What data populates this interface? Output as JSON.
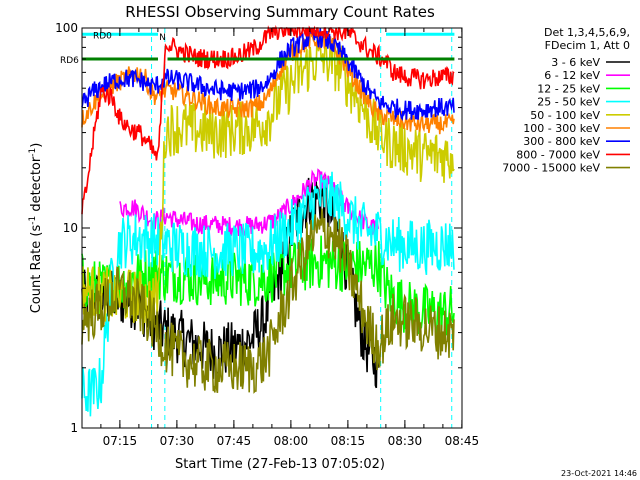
{
  "chart_data": {
    "type": "line",
    "title": "RHESSI Observing Summary Count Rates",
    "xlabel": "Start Time (27-Feb-13 07:05:02)",
    "ylabel_main": "Count Rate (s",
    "ylabel_sup": "-1",
    "ylabel_rest": " detector",
    "ylabel_sup2": "-1",
    "ylabel_close": ")",
    "yscale": "log",
    "ylim": [
      1,
      100
    ],
    "xlim_minutes": [
      0,
      100
    ],
    "y_ticks": [
      {
        "value": 1,
        "label": "1"
      },
      {
        "value": 10,
        "label": "10"
      },
      {
        "value": 100,
        "label": "100"
      }
    ],
    "x_ticks": [
      {
        "minute": 9.97,
        "label": "07:15"
      },
      {
        "minute": 24.97,
        "label": "07:30"
      },
      {
        "minute": 39.97,
        "label": "07:45"
      },
      {
        "minute": 54.97,
        "label": "08:00"
      },
      {
        "minute": 69.97,
        "label": "08:15"
      },
      {
        "minute": 84.97,
        "label": "08:30"
      },
      {
        "minute": 99.97,
        "label": "08:45"
      }
    ],
    "legend_header": [
      "Det 1,3,4,5,6,9,",
      "FDecim 1, Att 0"
    ],
    "legend_position": "right",
    "footer_date": "23-Oct-2021 14:46",
    "flags": [
      {
        "name": "RD0",
        "label": "RD0",
        "color": "#00ffff",
        "level": 93,
        "segments": [
          [
            0,
            20
          ],
          [
            80,
            98
          ]
        ]
      },
      {
        "name": "RD6",
        "label": "RD6",
        "color": "#008000",
        "level": 70,
        "segments": [
          [
            0,
            20
          ],
          [
            22.5,
            98
          ]
        ]
      }
    ],
    "flag_marker": {
      "label": "N",
      "minute": 19.5,
      "color": "#00ffff"
    },
    "vlines": [
      {
        "minute": 18.3,
        "color": "#00ffff"
      },
      {
        "minute": 21.8,
        "color": "#00ffff"
      },
      {
        "minute": 78.6,
        "color": "#00ffff"
      },
      {
        "minute": 97.3,
        "color": "#00ffff"
      }
    ],
    "series": [
      {
        "name": "3 - 6 keV",
        "color": "#000000",
        "x": [
          0,
          8,
          10,
          13,
          15,
          18,
          20,
          23,
          25,
          30,
          35,
          40,
          45,
          48,
          50,
          52,
          54,
          56,
          58,
          60,
          62,
          64,
          66,
          68,
          70,
          72,
          74,
          76,
          78
        ],
        "y": [
          4.5,
          4.5,
          4.4,
          4.3,
          4.2,
          3.5,
          3.2,
          3.0,
          2.9,
          2.6,
          2.4,
          2.5,
          2.8,
          3.5,
          4.5,
          6.0,
          8.0,
          10.5,
          12.5,
          14.0,
          14.5,
          13.5,
          11.0,
          8.5,
          6.0,
          4.0,
          2.8,
          2.3,
          2.1
        ]
      },
      {
        "name": "6 - 12 keV",
        "color": "#ff00ff",
        "x": [
          10,
          12,
          14,
          17,
          19,
          22,
          25,
          30,
          35,
          40,
          45,
          48,
          50,
          52,
          55,
          58,
          60,
          62,
          64,
          66,
          68,
          70,
          72,
          74,
          76,
          78
        ],
        "y": [
          12.5,
          12.8,
          12.6,
          11.5,
          10.8,
          11.5,
          11.0,
          10.5,
          10.4,
          10.2,
          10.3,
          10.5,
          10.8,
          11.5,
          13.0,
          15.0,
          16.8,
          17.5,
          17.0,
          15.5,
          14.0,
          12.5,
          11.5,
          10.8,
          10.2,
          9.8
        ]
      },
      {
        "name": "12 - 25 keV",
        "color": "#00ff00",
        "x": [
          0,
          2,
          5,
          10,
          15,
          18,
          20,
          22,
          25,
          30,
          35,
          40,
          45,
          48,
          50,
          52,
          55,
          58,
          60,
          62,
          64,
          66,
          68,
          70,
          72,
          74,
          76,
          78,
          80,
          82,
          84,
          86,
          88,
          90,
          92,
          94,
          96,
          98
        ],
        "y": [
          5.5,
          5.2,
          5.0,
          5.2,
          5.8,
          6.0,
          6.0,
          5.8,
          5.8,
          5.6,
          5.5,
          5.6,
          5.5,
          5.6,
          5.8,
          6.0,
          6.3,
          6.5,
          6.6,
          6.8,
          6.7,
          6.6,
          6.6,
          6.5,
          6.5,
          6.4,
          6.5,
          6.6,
          5.0,
          4.5,
          4.2,
          4.0,
          3.9,
          3.8,
          3.8,
          3.7,
          3.8,
          3.8
        ]
      },
      {
        "name": "25 - 50 keV",
        "color": "#00ffff",
        "x": [
          0,
          3,
          5,
          8,
          10,
          13,
          15,
          18,
          20,
          22,
          25,
          30,
          35,
          40,
          45,
          48,
          50,
          52,
          55,
          58,
          60,
          62,
          64,
          66,
          68,
          70,
          72,
          74,
          76,
          78,
          80,
          82,
          85,
          88,
          90,
          92,
          95,
          98
        ],
        "y": [
          1.5,
          1.5,
          1.7,
          6.0,
          8.5,
          8.8,
          9.0,
          8.8,
          8.6,
          8.4,
          8.0,
          7.8,
          7.6,
          7.8,
          7.6,
          7.8,
          8.2,
          9.0,
          10.0,
          11.5,
          13.0,
          14.0,
          14.5,
          13.8,
          12.8,
          11.5,
          10.5,
          9.8,
          9.5,
          9.3,
          8.8,
          8.4,
          8.2,
          8.0,
          8.0,
          8.1,
          8.2,
          8.3
        ]
      },
      {
        "name": "50 - 100 keV",
        "color": "#cccc00",
        "x": [
          0,
          3,
          5,
          8,
          10,
          13,
          15,
          18,
          20,
          22,
          25,
          30,
          35,
          40,
          45,
          48,
          50,
          52,
          55,
          58,
          60,
          62,
          64,
          66,
          68,
          70,
          72,
          74,
          76,
          78,
          80,
          82,
          85,
          88,
          90,
          92,
          95,
          98
        ],
        "y": [
          5.0,
          4.8,
          4.7,
          4.6,
          4.5,
          4.6,
          4.5,
          4.4,
          4.5,
          31,
          32,
          31,
          30,
          31,
          32,
          34,
          38,
          45,
          52,
          60,
          66,
          70,
          71,
          68,
          62,
          54,
          47,
          40,
          34,
          30,
          28,
          26,
          25,
          24,
          23,
          23,
          23,
          23
        ]
      },
      {
        "name": "100 - 300 keV",
        "color": "#ff8000",
        "x": [
          0,
          3,
          6,
          9,
          12,
          15,
          17,
          18,
          20,
          22,
          25,
          30,
          35,
          40,
          45,
          48,
          50,
          52,
          55,
          58,
          60,
          62,
          64,
          66,
          68,
          70,
          72,
          74,
          76,
          78,
          80,
          82,
          85,
          88,
          90,
          92,
          95,
          98
        ],
        "y": [
          35,
          42,
          48,
          53,
          57,
          60,
          55,
          48,
          45,
          49,
          48,
          44,
          40,
          39,
          40,
          43,
          50,
          62,
          75,
          83,
          87,
          88,
          86,
          80,
          72,
          62,
          54,
          47,
          41,
          37,
          36,
          35,
          34,
          33,
          33,
          33,
          33,
          33
        ]
      },
      {
        "name": "300 - 800 keV",
        "color": "#0000ff",
        "x": [
          0,
          3,
          6,
          9,
          12,
          15,
          17,
          18,
          20,
          22,
          25,
          30,
          35,
          40,
          45,
          48,
          50,
          52,
          55,
          58,
          60,
          62,
          64,
          66,
          68,
          70,
          72,
          74,
          76,
          78,
          80,
          82,
          85,
          88,
          90,
          92,
          95,
          98
        ],
        "y": [
          42,
          48,
          52,
          55,
          56,
          55,
          53,
          51,
          52,
          56,
          55,
          52,
          49,
          48,
          49,
          52,
          58,
          68,
          79,
          86,
          89,
          90,
          88,
          83,
          76,
          68,
          60,
          53,
          47,
          43,
          41,
          40,
          39,
          39,
          39,
          40,
          40,
          40
        ]
      },
      {
        "name": "800 - 7000 keV",
        "color": "#ff0000",
        "x": [
          0,
          1,
          3,
          5,
          8,
          10,
          13,
          15,
          17,
          20,
          22,
          25,
          30,
          35,
          40,
          45,
          48,
          50,
          52,
          55,
          58,
          60,
          62,
          64,
          66,
          68,
          70,
          72,
          74,
          76,
          78,
          80,
          82,
          85,
          88,
          90,
          92,
          95,
          98
        ],
        "y": [
          12,
          15,
          28,
          48,
          45,
          35,
          31,
          30,
          27,
          22,
          85,
          78,
          71,
          70,
          71,
          78,
          88,
          95,
          98,
          99,
          99,
          99,
          99,
          99,
          98,
          96,
          94,
          88,
          82,
          76,
          72,
          68,
          60,
          57,
          56,
          55,
          56,
          57,
          57
        ]
      },
      {
        "name": "7000 - 15000 keV",
        "color": "#808000",
        "x": [
          0,
          3,
          5,
          8,
          10,
          13,
          15,
          18,
          20,
          22,
          25,
          30,
          35,
          40,
          45,
          48,
          50,
          52,
          55,
          58,
          60,
          62,
          64,
          66,
          68,
          70,
          72,
          74,
          76,
          78,
          80,
          82,
          85,
          88,
          90,
          92,
          95,
          98
        ],
        "y": [
          3.5,
          3.8,
          4.0,
          4.5,
          4.8,
          4.5,
          4.0,
          3.5,
          3.0,
          2.6,
          2.3,
          2.1,
          2.0,
          2.0,
          2.0,
          2.2,
          2.6,
          3.5,
          5.0,
          7.0,
          8.5,
          9.5,
          9.8,
          9.3,
          8.0,
          6.5,
          5.0,
          3.8,
          3.0,
          2.6,
          3.0,
          3.5,
          3.4,
          3.3,
          3.2,
          3.1,
          3.0,
          3.0
        ]
      }
    ]
  }
}
